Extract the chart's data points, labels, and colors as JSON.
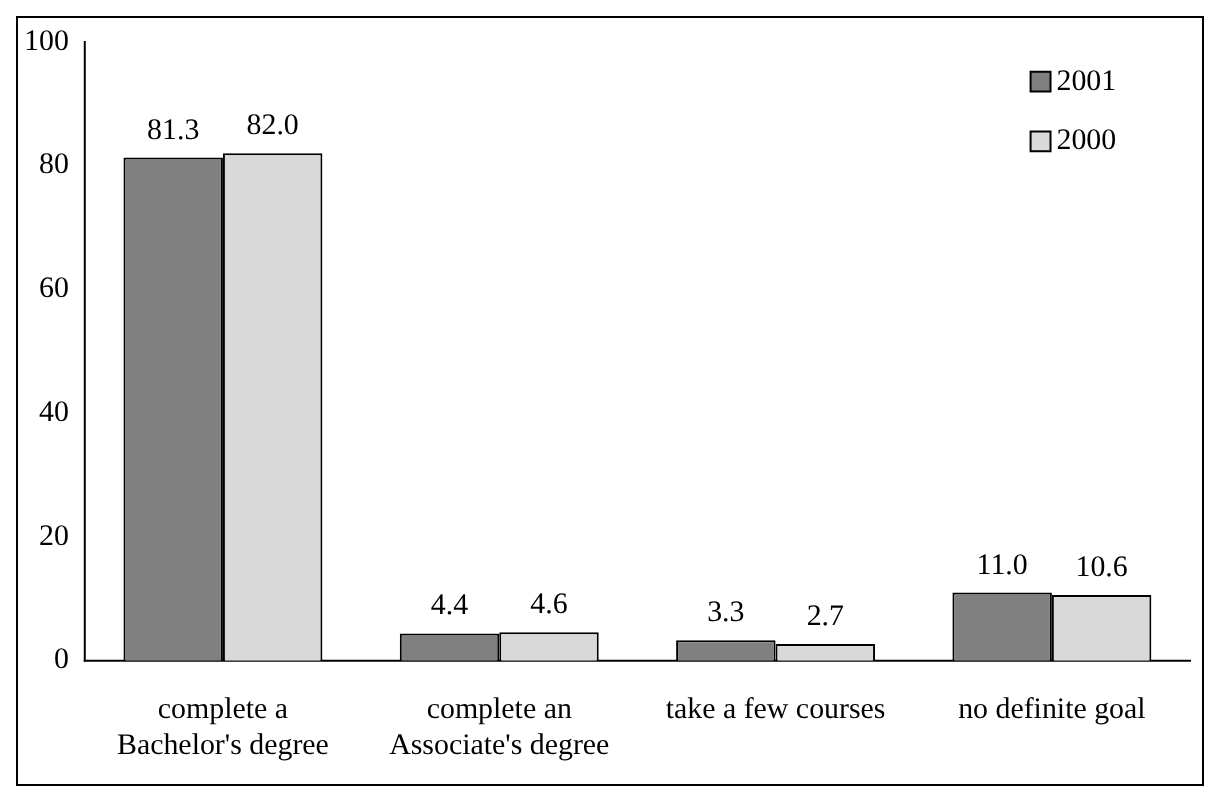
{
  "chart_data": {
    "type": "bar",
    "categories": [
      "complete a Bachelor's degree",
      "complete an Associate's degree",
      "take a few courses",
      "no definite goal"
    ],
    "series": [
      {
        "name": "2001",
        "color": "#808080",
        "values": [
          81.3,
          4.4,
          3.3,
          11.0
        ]
      },
      {
        "name": "2000",
        "color": "#d9d9d9",
        "values": [
          82.0,
          4.6,
          2.7,
          10.6
        ]
      }
    ],
    "value_labels": [
      [
        "81.3",
        "4.4",
        "3.3",
        "11.0"
      ],
      [
        "82.0",
        "4.6",
        "2.7",
        "10.6"
      ]
    ],
    "ylim": [
      0,
      100
    ],
    "yticks": [
      0,
      20,
      40,
      60,
      80,
      100
    ],
    "grid": false,
    "legend": "top right"
  }
}
